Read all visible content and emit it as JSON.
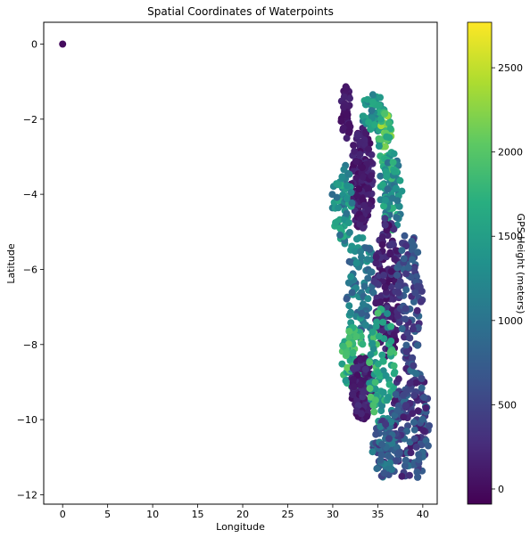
{
  "chart_data": {
    "type": "scatter",
    "title": "Spatial Coordinates of Waterpoints",
    "xlabel": "Longitude",
    "ylabel": "Latitude",
    "xlim": [
      -2.1,
      41.6
    ],
    "ylim": [
      -12.25,
      0.58
    ],
    "xticks": [
      0,
      5,
      10,
      15,
      20,
      25,
      30,
      35,
      40
    ],
    "yticks": [
      0,
      -2,
      -4,
      -6,
      -8,
      -10,
      -12
    ],
    "grid": false,
    "colormap": "viridis",
    "colorbar": {
      "label": "GPS Height (meters)",
      "range": [
        -90,
        2770
      ],
      "ticks": [
        0,
        500,
        1000,
        1500,
        2000,
        2500
      ]
    },
    "series": [
      {
        "description": "outlier points with missing coordinates",
        "points": [
          [
            0,
            0,
            0
          ]
        ]
      }
    ],
    "point_regions": [
      {
        "x_range": [
          30.9,
          32.0
        ],
        "lat_range": [
          -1.0,
          -2.6
        ],
        "height_range": [
          0,
          200
        ],
        "density": 40
      },
      {
        "x_range": [
          32.0,
          34.5
        ],
        "lat_range": [
          -2.2,
          -5.0
        ],
        "height_range": [
          0,
          300
        ],
        "density": 160
      },
      {
        "x_range": [
          33.2,
          35.8
        ],
        "lat_range": [
          -1.3,
          -2.4
        ],
        "height_range": [
          1000,
          1700
        ],
        "density": 60
      },
      {
        "x_range": [
          35.0,
          36.6
        ],
        "lat_range": [
          -1.8,
          -3.2
        ],
        "height_range": [
          1400,
          2400
        ],
        "density": 40
      },
      {
        "x_range": [
          35.2,
          37.8
        ],
        "lat_range": [
          -2.8,
          -5.0
        ],
        "height_range": [
          900,
          1900
        ],
        "density": 80
      },
      {
        "x_range": [
          29.9,
          32.2
        ],
        "lat_range": [
          -3.0,
          -5.4
        ],
        "height_range": [
          900,
          1700
        ],
        "density": 60
      },
      {
        "x_range": [
          31.5,
          34.7
        ],
        "lat_range": [
          -5.0,
          -8.0
        ],
        "height_range": [
          700,
          1500
        ],
        "density": 90
      },
      {
        "x_range": [
          34.6,
          37.5
        ],
        "lat_range": [
          -4.5,
          -8.5
        ],
        "height_range": [
          0,
          400
        ],
        "density": 140
      },
      {
        "x_range": [
          37.0,
          40.0
        ],
        "lat_range": [
          -5.0,
          -8.5
        ],
        "height_range": [
          200,
          900
        ],
        "density": 110
      },
      {
        "x_range": [
          31.0,
          33.5
        ],
        "lat_range": [
          -7.5,
          -9.2
        ],
        "height_range": [
          1300,
          2100
        ],
        "density": 70
      },
      {
        "x_range": [
          32.0,
          34.6
        ],
        "lat_range": [
          -8.3,
          -10.0
        ],
        "height_range": [
          0,
          300
        ],
        "density": 110
      },
      {
        "x_range": [
          34.0,
          37.0
        ],
        "lat_range": [
          -7.0,
          -10.2
        ],
        "height_range": [
          1200,
          2000
        ],
        "density": 90
      },
      {
        "x_range": [
          36.5,
          40.8
        ],
        "lat_range": [
          -8.5,
          -11.7
        ],
        "height_range": [
          100,
          1000
        ],
        "density": 170
      },
      {
        "x_range": [
          34.3,
          37.5
        ],
        "lat_range": [
          -10.0,
          -11.6
        ],
        "height_range": [
          300,
          1200
        ],
        "density": 90
      }
    ]
  }
}
